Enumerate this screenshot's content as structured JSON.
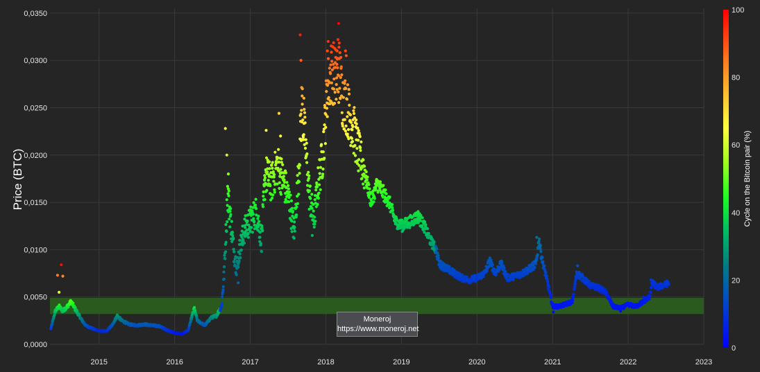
{
  "chart_data": {
    "type": "scatter",
    "ylabel": "Price (BTC)",
    "colorbar_label": "Cycle on the Bitcoin pair (%)",
    "xlim": [
      2014.35,
      2023.0
    ],
    "ylim": [
      0,
      0.0355
    ],
    "x_ticks": [
      "2015",
      "2016",
      "2017",
      "2018",
      "2019",
      "2020",
      "2021",
      "2022",
      "2023"
    ],
    "y_ticks": [
      "0,0000",
      "0,0050",
      "0,0100",
      "0,0150",
      "0,0200",
      "0,0250",
      "0,0300",
      "0,0350"
    ],
    "y_tick_values": [
      0,
      0.005,
      0.01,
      0.015,
      0.02,
      0.025,
      0.03,
      0.035
    ],
    "colorbar_ticks": [
      "0",
      "20",
      "40",
      "60",
      "80",
      "100"
    ],
    "colorbar_tick_values": [
      0,
      20,
      40,
      60,
      80,
      100
    ],
    "band": {
      "y_from": 0.0032,
      "y_to": 0.0049,
      "color": "#2a5a1e"
    },
    "grid": true,
    "colors": {
      "background": "#252526",
      "grid": "#3a3a3c"
    },
    "price_trace": [
      [
        2014.36,
        0.0016
      ],
      [
        2014.42,
        0.0035
      ],
      [
        2014.47,
        0.004
      ],
      [
        2014.52,
        0.0035
      ],
      [
        2014.58,
        0.004
      ],
      [
        2014.63,
        0.0045
      ],
      [
        2014.7,
        0.0035
      ],
      [
        2014.76,
        0.0027
      ],
      [
        2014.82,
        0.002
      ],
      [
        2014.9,
        0.0017
      ],
      [
        2015.0,
        0.0014
      ],
      [
        2015.1,
        0.0014
      ],
      [
        2015.17,
        0.002
      ],
      [
        2015.24,
        0.003
      ],
      [
        2015.3,
        0.0025
      ],
      [
        2015.4,
        0.0021
      ],
      [
        2015.5,
        0.002
      ],
      [
        2015.6,
        0.0021
      ],
      [
        2015.7,
        0.002
      ],
      [
        2015.8,
        0.0019
      ],
      [
        2015.9,
        0.0015
      ],
      [
        2016.0,
        0.0012
      ],
      [
        2016.1,
        0.0011
      ],
      [
        2016.18,
        0.0015
      ],
      [
        2016.23,
        0.003
      ],
      [
        2016.26,
        0.0038
      ],
      [
        2016.3,
        0.0025
      ],
      [
        2016.4,
        0.002
      ],
      [
        2016.48,
        0.0028
      ],
      [
        2016.55,
        0.003
      ],
      [
        2016.62,
        0.004
      ],
      [
        2016.65,
        0.007
      ],
      [
        2016.68,
        0.012
      ],
      [
        2016.7,
        0.016
      ],
      [
        2016.73,
        0.014
      ],
      [
        2016.78,
        0.01
      ],
      [
        2016.82,
        0.008
      ],
      [
        2016.86,
        0.01
      ],
      [
        2016.92,
        0.012
      ],
      [
        2017.0,
        0.013
      ],
      [
        2017.08,
        0.014
      ],
      [
        2017.15,
        0.011
      ],
      [
        2017.2,
        0.018
      ],
      [
        2017.28,
        0.017
      ],
      [
        2017.36,
        0.019
      ],
      [
        2017.45,
        0.017
      ],
      [
        2017.52,
        0.015
      ],
      [
        2017.58,
        0.012
      ],
      [
        2017.64,
        0.018
      ],
      [
        2017.68,
        0.025
      ],
      [
        2017.72,
        0.022
      ],
      [
        2017.78,
        0.016
      ],
      [
        2017.84,
        0.013
      ],
      [
        2017.9,
        0.017
      ],
      [
        2017.96,
        0.02
      ],
      [
        2018.02,
        0.027
      ],
      [
        2018.08,
        0.029
      ],
      [
        2018.14,
        0.028
      ],
      [
        2018.18,
        0.029
      ],
      [
        2018.22,
        0.026
      ],
      [
        2018.28,
        0.025
      ],
      [
        2018.36,
        0.023
      ],
      [
        2018.44,
        0.02
      ],
      [
        2018.52,
        0.018
      ],
      [
        2018.6,
        0.015
      ],
      [
        2018.68,
        0.017
      ],
      [
        2018.76,
        0.016
      ],
      [
        2018.84,
        0.015
      ],
      [
        2018.92,
        0.013
      ],
      [
        2019.0,
        0.0125
      ],
      [
        2019.12,
        0.013
      ],
      [
        2019.22,
        0.0135
      ],
      [
        2019.3,
        0.0125
      ],
      [
        2019.38,
        0.011
      ],
      [
        2019.46,
        0.01
      ],
      [
        2019.5,
        0.0085
      ],
      [
        2019.6,
        0.008
      ],
      [
        2019.7,
        0.0075
      ],
      [
        2019.8,
        0.007
      ],
      [
        2019.9,
        0.0068
      ],
      [
        2020.0,
        0.007
      ],
      [
        2020.1,
        0.0075
      ],
      [
        2020.17,
        0.0088
      ],
      [
        2020.24,
        0.0075
      ],
      [
        2020.32,
        0.0085
      ],
      [
        2020.4,
        0.007
      ],
      [
        2020.5,
        0.0072
      ],
      [
        2020.6,
        0.0075
      ],
      [
        2020.7,
        0.008
      ],
      [
        2020.78,
        0.0085
      ],
      [
        2020.82,
        0.011
      ],
      [
        2020.86,
        0.009
      ],
      [
        2020.92,
        0.007
      ],
      [
        2021.0,
        0.004
      ],
      [
        2021.08,
        0.004
      ],
      [
        2021.16,
        0.0042
      ],
      [
        2021.26,
        0.0045
      ],
      [
        2021.32,
        0.0075
      ],
      [
        2021.4,
        0.007
      ],
      [
        2021.5,
        0.0062
      ],
      [
        2021.6,
        0.006
      ],
      [
        2021.7,
        0.0055
      ],
      [
        2021.8,
        0.004
      ],
      [
        2021.9,
        0.0038
      ],
      [
        2022.0,
        0.0042
      ],
      [
        2022.1,
        0.004
      ],
      [
        2022.2,
        0.0045
      ],
      [
        2022.28,
        0.005
      ],
      [
        2022.32,
        0.0065
      ],
      [
        2022.38,
        0.006
      ],
      [
        2022.46,
        0.0062
      ],
      [
        2022.54,
        0.0065
      ]
    ],
    "spikes": [
      [
        2014.45,
        0.0073
      ],
      [
        2014.5,
        0.0084
      ],
      [
        2014.52,
        0.0072
      ],
      [
        2014.47,
        0.0055
      ],
      [
        2016.67,
        0.0228
      ],
      [
        2016.69,
        0.02
      ],
      [
        2016.71,
        0.018
      ],
      [
        2017.21,
        0.0226
      ],
      [
        2017.4,
        0.022
      ],
      [
        2017.38,
        0.0244
      ],
      [
        2017.66,
        0.0327
      ],
      [
        2017.67,
        0.03
      ],
      [
        2017.69,
        0.027
      ],
      [
        2017.71,
        0.026
      ],
      [
        2018.17,
        0.0339
      ],
      [
        2018.16,
        0.0322
      ],
      [
        2018.15,
        0.031
      ],
      [
        2018.03,
        0.032
      ],
      [
        2018.02,
        0.031
      ],
      [
        2018.27,
        0.0305
      ],
      [
        2018.26,
        0.031
      ],
      [
        2017.58,
        0.0112
      ],
      [
        2017.82,
        0.0115
      ],
      [
        2016.84,
        0.0065
      ],
      [
        2016.9,
        0.0105
      ],
      [
        2017.14,
        0.0105
      ],
      [
        2020.79,
        0.0113
      ],
      [
        2020.95,
        0.006
      ],
      [
        2021.01,
        0.0034
      ],
      [
        2021.33,
        0.0083
      ],
      [
        2022.3,
        0.0068
      ],
      [
        2022.2,
        0.005
      ],
      [
        2021.9,
        0.0035
      ]
    ]
  },
  "watermark": {
    "line1": "Moneroj",
    "line2": "https://www.moneroj.net"
  }
}
